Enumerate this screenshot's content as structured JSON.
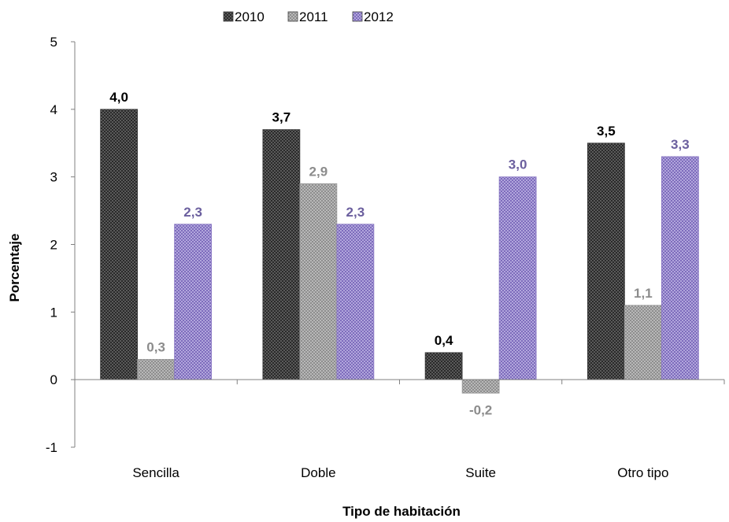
{
  "chart_data": {
    "type": "bar",
    "title": "",
    "xlabel": "Tipo de habitación",
    "ylabel": "Porcentaje",
    "categories": [
      "Sencilla",
      "Doble",
      "Suite",
      "Otro tipo"
    ],
    "series": [
      {
        "name": "2010",
        "values": [
          4.0,
          3.7,
          0.4,
          3.5
        ],
        "labels": [
          "4,0",
          "3,7",
          "0,4",
          "3,5"
        ],
        "color": "#3a3a3a",
        "label_color": "#000000"
      },
      {
        "name": "2011",
        "values": [
          0.3,
          2.9,
          -0.2,
          1.1
        ],
        "labels": [
          "0,3",
          "2,9",
          "-0,2",
          "1,1"
        ],
        "color": "#9a9a9a",
        "label_color": "#8c8c8c"
      },
      {
        "name": "2012",
        "values": [
          2.3,
          2.3,
          3.0,
          3.3
        ],
        "labels": [
          "2,3",
          "2,3",
          "3,0",
          "3,3"
        ],
        "color": "#8a78c4",
        "label_color": "#6b5f9e"
      }
    ],
    "ylim": [
      -1,
      5
    ],
    "yticks": [
      -1,
      0,
      1,
      2,
      3,
      4,
      5
    ],
    "grid": false,
    "legend_position": "top"
  }
}
